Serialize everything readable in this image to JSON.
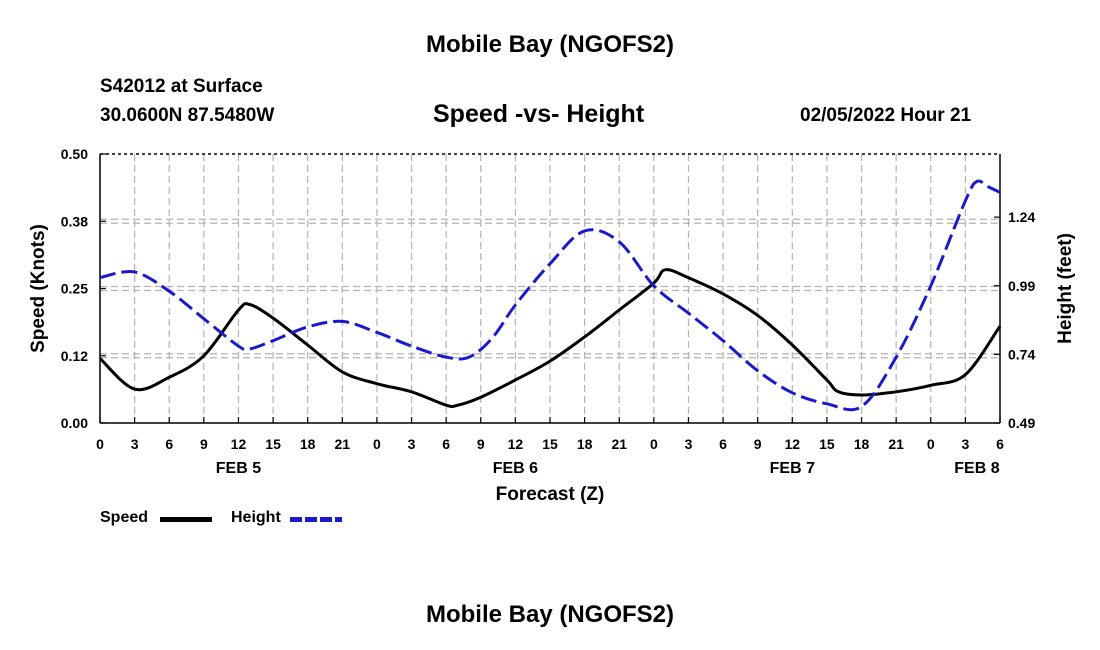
{
  "header": {
    "title": "Mobile Bay (NGOFS2)",
    "station": "S42012 at Surface",
    "coords": "30.0600N  87.5480W",
    "subtitle": "Speed -vs- Height",
    "datetime": "02/05/2022 Hour 21",
    "bottom_title": "Mobile Bay (NGOFS2)"
  },
  "legend": {
    "speed_label": "Speed",
    "height_label": "Height"
  },
  "colors": {
    "speed": "#000000",
    "height": "#1a1acc",
    "grid": "#b4b4b4"
  },
  "chart_data": {
    "type": "line",
    "xlabel": "Forecast (Z)",
    "ylabel_left": "Speed (Knots)",
    "ylabel_right": "Height (feet)",
    "x_range_hours": [
      0,
      78
    ],
    "x_ticks": [
      "0",
      "3",
      "6",
      "9",
      "12",
      "15",
      "18",
      "21",
      "0",
      "3",
      "6",
      "9",
      "12",
      "15",
      "18",
      "21",
      "0",
      "3",
      "6",
      "9",
      "12",
      "15",
      "18",
      "21",
      "0",
      "3",
      "6"
    ],
    "day_labels": [
      {
        "label": "FEB 5",
        "hour": 12
      },
      {
        "label": "FEB 6",
        "hour": 36
      },
      {
        "label": "FEB 7",
        "hour": 60
      },
      {
        "label": "FEB 8",
        "hour": 76
      }
    ],
    "y_left": {
      "range": [
        0,
        0.5
      ],
      "ticks": [
        "0.00",
        "0.12",
        "0.25",
        "0.38",
        "0.50"
      ]
    },
    "y_right": {
      "range": [
        0.49,
        1.47
      ],
      "ticks": [
        "0.49",
        "0.74",
        "0.99",
        "1.24"
      ]
    },
    "grid": true,
    "series": [
      {
        "name": "Speed",
        "axis": "left",
        "x": [
          0,
          3,
          6,
          9,
          12,
          13,
          15,
          18,
          21,
          24,
          27,
          30,
          31,
          33,
          36,
          39,
          42,
          45,
          48,
          49,
          51,
          54,
          57,
          60,
          63,
          64,
          66,
          69,
          72,
          75,
          78
        ],
        "values": [
          0.12,
          0.063,
          0.085,
          0.125,
          0.21,
          0.22,
          0.195,
          0.145,
          0.095,
          0.073,
          0.058,
          0.033,
          0.033,
          0.048,
          0.08,
          0.115,
          0.16,
          0.21,
          0.26,
          0.285,
          0.27,
          0.24,
          0.2,
          0.145,
          0.08,
          0.058,
          0.052,
          0.058,
          0.07,
          0.09,
          0.18
        ]
      },
      {
        "name": "Height",
        "axis": "right",
        "x": [
          0,
          3,
          6,
          9,
          12,
          13,
          15,
          18,
          21,
          24,
          27,
          30,
          32,
          34,
          36,
          39,
          42,
          45,
          48,
          51,
          54,
          57,
          60,
          63,
          66,
          69,
          72,
          75,
          76,
          77,
          78
        ],
        "values": [
          1.02,
          1.04,
          0.97,
          0.87,
          0.77,
          0.76,
          0.79,
          0.84,
          0.86,
          0.82,
          0.77,
          0.73,
          0.73,
          0.8,
          0.92,
          1.07,
          1.19,
          1.15,
          0.99,
          0.89,
          0.79,
          0.68,
          0.6,
          0.56,
          0.55,
          0.73,
          0.99,
          1.3,
          1.37,
          1.35,
          1.33
        ]
      }
    ]
  }
}
